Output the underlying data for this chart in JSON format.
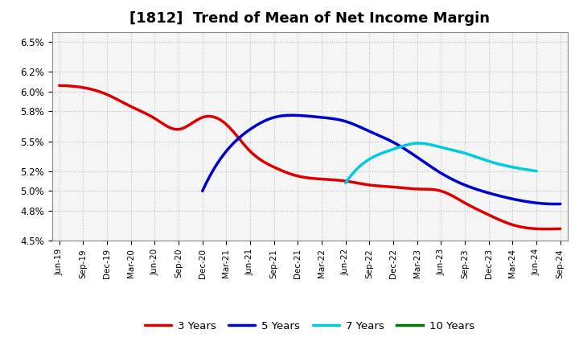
{
  "title": "[1812]  Trend of Mean of Net Income Margin",
  "ylim": [
    0.045,
    0.066
  ],
  "yticks": [
    0.045,
    0.048,
    0.05,
    0.052,
    0.055,
    0.058,
    0.06,
    0.062,
    0.065
  ],
  "ytick_labels": [
    "4.5%",
    "4.8%",
    "5.0%",
    "5.2%",
    "5.5%",
    "5.8%",
    "6.0%",
    "6.2%",
    "6.5%"
  ],
  "x_labels": [
    "Jun-19",
    "Sep-19",
    "Dec-19",
    "Mar-20",
    "Jun-20",
    "Sep-20",
    "Dec-20",
    "Mar-21",
    "Jun-21",
    "Sep-21",
    "Dec-21",
    "Mar-22",
    "Jun-22",
    "Sep-22",
    "Dec-22",
    "Mar-23",
    "Jun-23",
    "Sep-23",
    "Dec-23",
    "Mar-24",
    "Jun-24",
    "Sep-24"
  ],
  "series_3y": [
    0.0606,
    0.0604,
    0.0597,
    0.0585,
    0.0573,
    0.0562,
    0.0574,
    0.0567,
    0.054,
    0.0524,
    0.0515,
    0.0512,
    0.051,
    0.0506,
    0.0504,
    0.0502,
    0.05,
    0.0488,
    0.0476,
    0.0466,
    0.0462,
    0.0462
  ],
  "series_5y": [
    null,
    null,
    null,
    null,
    null,
    null,
    0.05,
    0.054,
    0.0562,
    0.0574,
    0.0576,
    0.0574,
    0.057,
    0.056,
    0.0549,
    0.0534,
    0.0518,
    0.0506,
    0.0498,
    0.0492,
    0.0488,
    0.0487
  ],
  "series_7y": [
    null,
    null,
    null,
    null,
    null,
    null,
    null,
    null,
    null,
    null,
    null,
    null,
    0.0508,
    0.0532,
    0.0542,
    0.0548,
    0.0544,
    0.0538,
    0.053,
    0.0524,
    0.052,
    null
  ],
  "series_10y": [],
  "color_3y": "#dd0000",
  "color_5y": "#0000cc",
  "color_7y": "#00ccdd",
  "color_10y": "#007700",
  "legend_labels": [
    "3 Years",
    "5 Years",
    "7 Years",
    "10 Years"
  ],
  "background_color": "#ffffff",
  "plot_bg_color": "#f5f5f5",
  "grid_color": "#999999",
  "title_fontsize": 13,
  "linewidth": 2.5
}
